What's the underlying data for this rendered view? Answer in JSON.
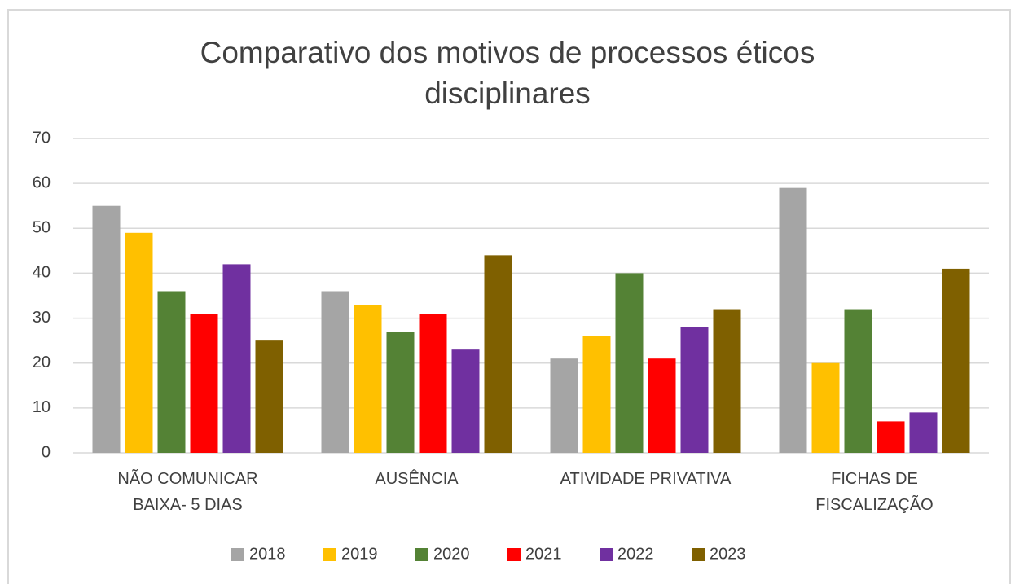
{
  "chart_data": {
    "type": "bar",
    "title": "Comparativo dos motivos de processos éticos disciplinares",
    "categories": [
      "NÃO COMUNICAR\nBAIXA- 5 DIAS",
      "AUSÊNCIA",
      "ATIVIDADE PRIVATIVA",
      "FICHAS DE\nFISCALIZAÇÃO"
    ],
    "series": [
      {
        "name": "2018",
        "color": "#a5a5a5",
        "values": [
          55,
          36,
          21,
          59
        ]
      },
      {
        "name": "2019",
        "color": "#ffc000",
        "values": [
          49,
          33,
          26,
          20
        ]
      },
      {
        "name": "2020",
        "color": "#548235",
        "values": [
          36,
          27,
          40,
          32
        ]
      },
      {
        "name": "2021",
        "color": "#ff0000",
        "values": [
          31,
          31,
          21,
          7
        ]
      },
      {
        "name": "2022",
        "color": "#7030a0",
        "values": [
          42,
          23,
          28,
          9
        ]
      },
      {
        "name": "2023",
        "color": "#7f6000",
        "values": [
          25,
          44,
          32,
          41
        ]
      }
    ],
    "ylim": [
      0,
      70
    ],
    "yticks": [
      0,
      10,
      20,
      30,
      40,
      50,
      60,
      70
    ],
    "grid": true,
    "legend": "bottom"
  }
}
